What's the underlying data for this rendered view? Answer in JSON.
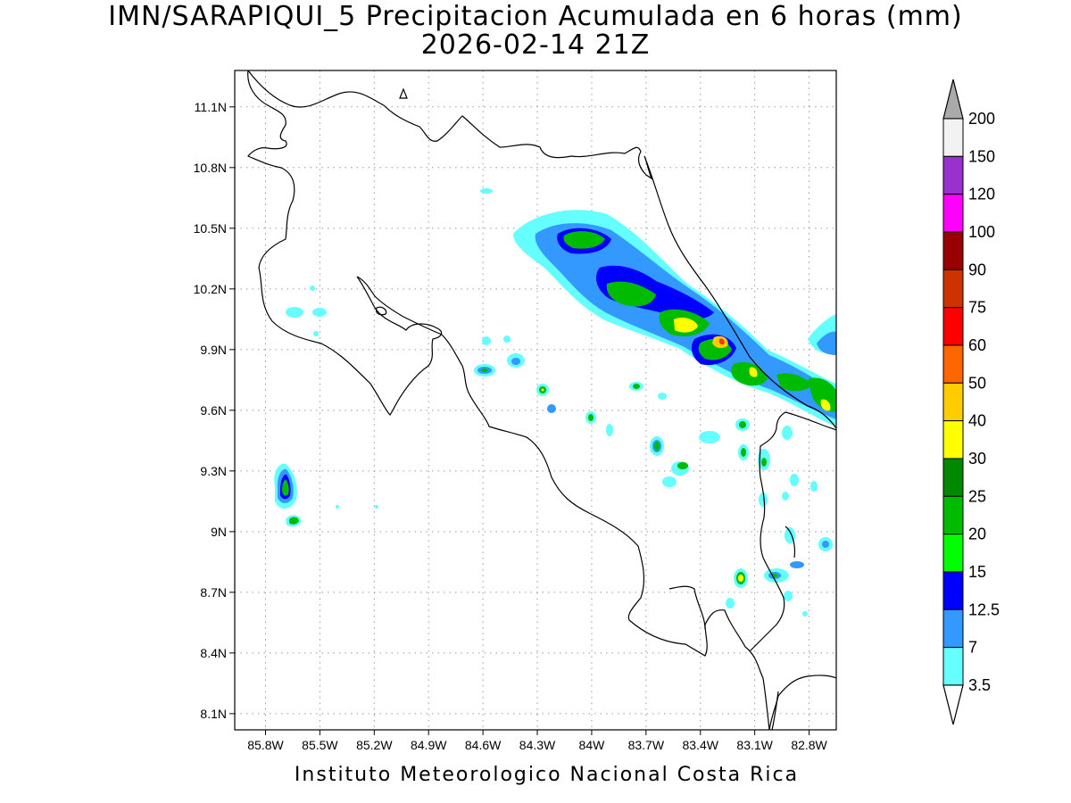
{
  "title": {
    "line1": "IMN/SARAPIQUI_5 Precipitacion Acumulada en 6 horas (mm)",
    "line2": "2026-02-14 21Z"
  },
  "footer": "Instituto Meteorologico Nacional Costa Rica",
  "map": {
    "type": "map",
    "variable": "Precipitacion Acumulada en 6 horas",
    "units": "mm",
    "lon_range": [
      -85.97,
      -82.65
    ],
    "lat_range": [
      8.02,
      11.28
    ],
    "grid": true,
    "x_ticks": [
      "85.8W",
      "85.5W",
      "85.2W",
      "84.9W",
      "84.6W",
      "84.3W",
      "84W",
      "83.7W",
      "83.4W",
      "83.1W",
      "82.8W"
    ],
    "y_ticks": [
      "11.1N",
      "10.8N",
      "10.5N",
      "10.2N",
      "9.9N",
      "9.6N",
      "9.3N",
      "9N",
      "8.7N",
      "8.4N",
      "8.1N"
    ]
  },
  "colorbar": {
    "levels": [
      "200",
      "150",
      "120",
      "100",
      "90",
      "75",
      "60",
      "50",
      "40",
      "30",
      "25",
      "20",
      "15",
      "12.5",
      "7",
      "3.5"
    ],
    "colors": [
      "#f2f2f2",
      "#9932cc",
      "#ff00ff",
      "#990000",
      "#cc3300",
      "#ff0000",
      "#ff6600",
      "#ffcc00",
      "#ffff00",
      "#008800",
      "#00bb00",
      "#00ff00",
      "#0000ff",
      "#3399ff",
      "#66ffff"
    ],
    "over_color": "#aaaaaa",
    "under_color": "#ffffff"
  }
}
